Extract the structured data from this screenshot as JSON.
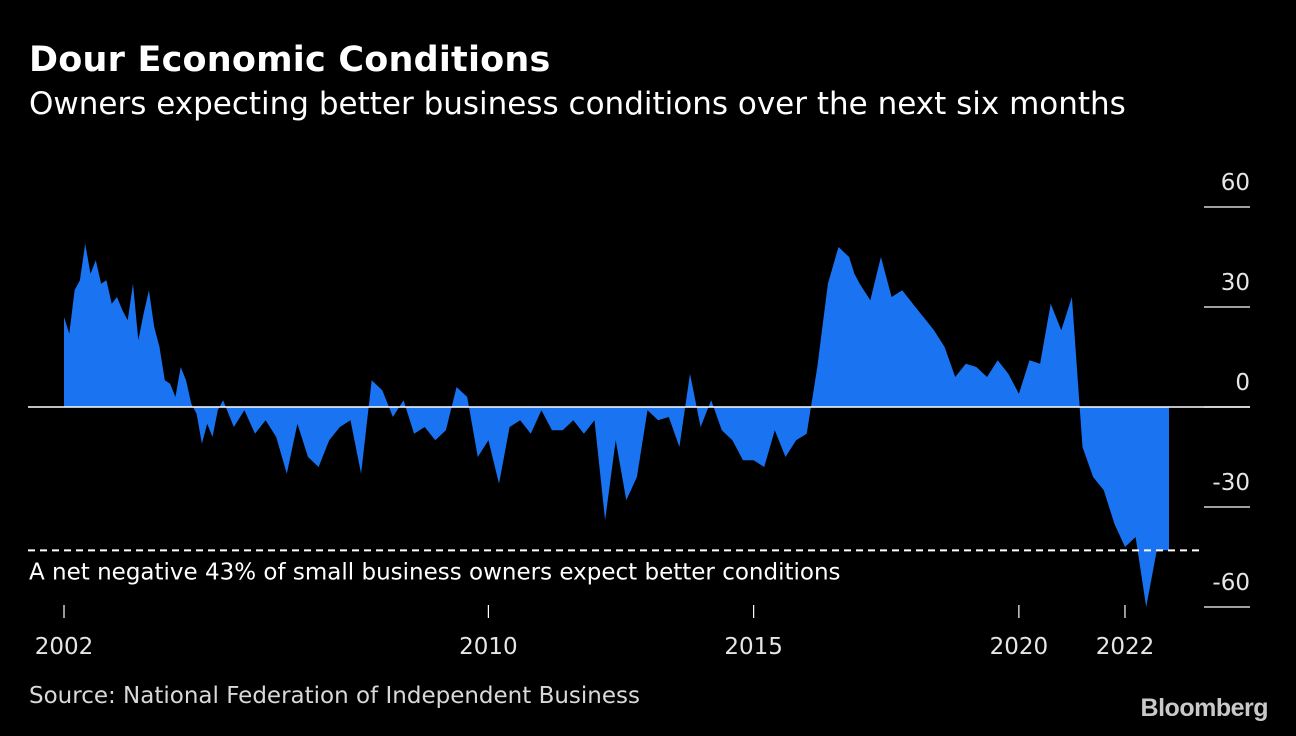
{
  "title": "Dour Economic Conditions",
  "subtitle": "Owners expecting better business conditions over the next six months",
  "source": "Source: National Federation of Independent Business",
  "brand": "Bloomberg",
  "colors": {
    "background": "#000000",
    "area": "#1a73f0",
    "axis": "#ffffff"
  },
  "chart_data": {
    "type": "area",
    "title": "Dour Economic Conditions",
    "subtitle": "Owners expecting better business conditions over the next six months",
    "xlabel": "",
    "ylabel": "",
    "unit": "net percent",
    "xlim": [
      2002.0,
      2022.83
    ],
    "ylim": [
      -60,
      60
    ],
    "y_ticks": [
      60,
      30,
      0,
      -30,
      -60
    ],
    "x_ticks": [
      2002,
      2010,
      2015,
      2020,
      2022
    ],
    "grid": false,
    "annotation": {
      "value": -43,
      "text": "A net negative 43% of small business owners expect better conditions"
    },
    "series": [
      {
        "name": "Owners expecting better business conditions",
        "x": [
          2002.0,
          2002.1,
          2002.2,
          2002.3,
          2002.4,
          2002.5,
          2002.6,
          2002.7,
          2002.8,
          2002.9,
          2003.0,
          2003.1,
          2003.2,
          2003.3,
          2003.4,
          2003.5,
          2003.6,
          2003.7,
          2003.8,
          2003.9,
          2004.0,
          2004.1,
          2004.2,
          2004.3,
          2004.4,
          2004.5,
          2004.6,
          2004.7,
          2004.8,
          2004.9,
          2005.0,
          2005.2,
          2005.4,
          2005.6,
          2005.8,
          2006.0,
          2006.2,
          2006.4,
          2006.6,
          2006.8,
          2007.0,
          2007.2,
          2007.4,
          2007.6,
          2007.8,
          2008.0,
          2008.2,
          2008.4,
          2008.6,
          2008.8,
          2009.0,
          2009.2,
          2009.4,
          2009.6,
          2009.8,
          2010.0,
          2010.2,
          2010.4,
          2010.6,
          2010.8,
          2011.0,
          2011.2,
          2011.4,
          2011.6,
          2011.8,
          2012.0,
          2012.2,
          2012.4,
          2012.6,
          2012.8,
          2013.0,
          2013.2,
          2013.4,
          2013.6,
          2013.8,
          2014.0,
          2014.2,
          2014.4,
          2014.6,
          2014.8,
          2015.0,
          2015.2,
          2015.4,
          2015.6,
          2015.8,
          2016.0,
          2016.2,
          2016.4,
          2016.6,
          2016.8,
          2016.9,
          2017.0,
          2017.2,
          2017.4,
          2017.6,
          2017.8,
          2018.0,
          2018.2,
          2018.4,
          2018.6,
          2018.8,
          2019.0,
          2019.2,
          2019.4,
          2019.6,
          2019.8,
          2020.0,
          2020.2,
          2020.4,
          2020.6,
          2020.8,
          2021.0,
          2021.2,
          2021.4,
          2021.6,
          2021.8,
          2022.0,
          2022.2,
          2022.4,
          2022.6,
          2022.83
        ],
        "values": [
          27,
          22,
          35,
          38,
          49,
          40,
          44,
          37,
          38,
          31,
          33,
          29,
          26,
          37,
          20,
          28,
          35,
          24,
          18,
          8,
          7,
          3,
          12,
          8,
          1,
          -2,
          -11,
          -5,
          -9,
          -1,
          2,
          -6,
          -1,
          -8,
          -4,
          -9,
          -20,
          -5,
          -15,
          -18,
          -10,
          -6,
          -4,
          -20,
          8,
          5,
          -3,
          2,
          -8,
          -6,
          -10,
          -7,
          6,
          3,
          -15,
          -10,
          -23,
          -6,
          -4,
          -8,
          -1,
          -7,
          -7,
          -4,
          -8,
          -4,
          -34,
          -10,
          -28,
          -21,
          -1,
          -4,
          -3,
          -12,
          10,
          -6,
          2,
          -7,
          -10,
          -16,
          -16,
          -18,
          -7,
          -15,
          -10,
          -8,
          12,
          37,
          48,
          45,
          40,
          37,
          32,
          45,
          33,
          35,
          31,
          27,
          23,
          18,
          9,
          13,
          12,
          9,
          14,
          10,
          4,
          14,
          13,
          31,
          23,
          33,
          -12,
          -21,
          -25,
          -35,
          -42,
          -39,
          -60,
          -43,
          -43
        ]
      }
    ]
  }
}
